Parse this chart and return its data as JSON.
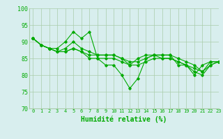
{
  "series": [
    {
      "x": [
        0,
        1,
        2,
        3,
        4,
        5,
        6,
        7,
        8,
        9,
        10,
        11,
        12,
        13,
        14,
        15,
        16,
        17,
        18,
        19,
        20,
        21,
        22,
        23
      ],
      "y": [
        91,
        89,
        88,
        88,
        90,
        93,
        91,
        93,
        85,
        83,
        83,
        80,
        76,
        79,
        85,
        86,
        86,
        86,
        83,
        83,
        80,
        83,
        84,
        84
      ]
    },
    {
      "x": [
        0,
        1,
        2,
        3,
        4,
        5,
        6,
        7,
        8,
        9,
        10,
        11,
        12,
        13,
        14,
        15,
        16,
        17,
        18,
        19,
        20,
        21,
        22,
        23
      ],
      "y": [
        91,
        89,
        88,
        87,
        88,
        90,
        88,
        87,
        86,
        86,
        86,
        85,
        83,
        85,
        86,
        86,
        86,
        86,
        85,
        84,
        83,
        81,
        84,
        84
      ]
    },
    {
      "x": [
        0,
        1,
        2,
        3,
        4,
        5,
        6,
        7,
        8,
        9,
        10,
        11,
        12,
        13,
        14,
        15,
        16,
        17,
        18,
        19,
        20,
        21,
        22,
        23
      ],
      "y": [
        91,
        89,
        88,
        87,
        87,
        88,
        87,
        86,
        86,
        86,
        86,
        85,
        84,
        84,
        85,
        86,
        85,
        85,
        84,
        83,
        82,
        81,
        83,
        84
      ]
    },
    {
      "x": [
        0,
        1,
        2,
        3,
        4,
        5,
        6,
        7,
        8,
        9,
        10,
        11,
        12,
        13,
        14,
        15,
        16,
        17,
        18,
        19,
        20,
        21,
        22,
        23
      ],
      "y": [
        91,
        89,
        88,
        87,
        87,
        88,
        87,
        85,
        85,
        85,
        85,
        84,
        83,
        83,
        84,
        85,
        85,
        85,
        84,
        83,
        81,
        80,
        83,
        84
      ]
    }
  ],
  "xlabel": "Humidité relative (%)",
  "ylim": [
    70,
    100
  ],
  "xlim": [
    -0.5,
    23
  ],
  "yticks": [
    70,
    75,
    80,
    85,
    90,
    95,
    100
  ],
  "xticks": [
    0,
    1,
    2,
    3,
    4,
    5,
    6,
    7,
    8,
    9,
    10,
    11,
    12,
    13,
    14,
    15,
    16,
    17,
    18,
    19,
    20,
    21,
    22,
    23
  ],
  "xtick_labels": [
    "0",
    "1",
    "2",
    "3",
    "4",
    "5",
    "6",
    "7",
    "8",
    "9",
    "10",
    "11",
    "12",
    "13",
    "14",
    "15",
    "16",
    "17",
    "18",
    "19",
    "20",
    "21",
    "22",
    "23"
  ],
  "bg_color": "#d8eeee",
  "grid_color": "#aaccaa",
  "line_color": "#00aa00",
  "marker": "D",
  "marker_size": 1.8,
  "line_width": 0.8
}
